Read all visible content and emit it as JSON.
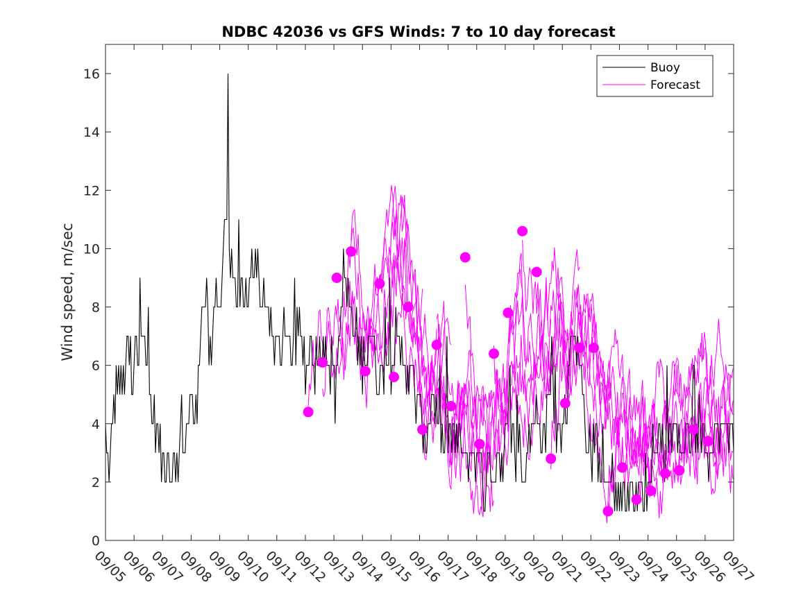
{
  "chart_data": {
    "type": "line",
    "title": "NDBC 42036 vs GFS Winds: 7 to 10 day forecast",
    "xlabel": "",
    "ylabel": "Wind speed, m/sec",
    "xlim": [
      0,
      22
    ],
    "ylim": [
      0,
      17
    ],
    "yticks": [
      0,
      2,
      4,
      6,
      8,
      10,
      12,
      14,
      16
    ],
    "ytick_labels": [
      "0",
      "2",
      "4",
      "6",
      "8",
      "10",
      "12",
      "14",
      "16"
    ],
    "xtick_labels": [
      "09/05",
      "09/06",
      "09/07",
      "09/08",
      "09/09",
      "09/10",
      "09/11",
      "09/12",
      "09/13",
      "09/14",
      "09/15",
      "09/16",
      "09/17",
      "09/18",
      "09/19",
      "09/20",
      "09/21",
      "09/22",
      "09/23",
      "09/24",
      "09/25",
      "09/26",
      "09/27"
    ],
    "legend": {
      "location": "top-right",
      "entries": [
        {
          "label": "Buoy",
          "color": "#000000"
        },
        {
          "label": "Forecast",
          "color": "#ff00ff"
        }
      ]
    },
    "colors": {
      "buoy": "#000000",
      "forecast": "#ff00ff",
      "axes": "#262626"
    },
    "buoy_anchors": [
      [
        0,
        3.3
      ],
      [
        0.05,
        3
      ],
      [
        0.15,
        2
      ],
      [
        0.25,
        4
      ],
      [
        0.35,
        5
      ],
      [
        0.45,
        6
      ],
      [
        0.55,
        5
      ],
      [
        0.65,
        6
      ],
      [
        0.75,
        6
      ],
      [
        0.85,
        6.5
      ],
      [
        0.95,
        4.5
      ],
      [
        1.05,
        6.5
      ],
      [
        1.15,
        6
      ],
      [
        1.3,
        8
      ],
      [
        1.45,
        6
      ],
      [
        1.55,
        5
      ],
      [
        1.7,
        4
      ],
      [
        1.85,
        3
      ],
      [
        2.0,
        2.5
      ],
      [
        2.15,
        3
      ],
      [
        2.3,
        2.5
      ],
      [
        2.45,
        2
      ],
      [
        2.55,
        1.5
      ],
      [
        2.65,
        5
      ],
      [
        2.75,
        3
      ],
      [
        2.85,
        4
      ],
      [
        3.0,
        5
      ],
      [
        3.15,
        4
      ],
      [
        3.3,
        7
      ],
      [
        3.4,
        8
      ],
      [
        3.55,
        8.5
      ],
      [
        3.7,
        5
      ],
      [
        3.8,
        8
      ],
      [
        3.95,
        9
      ],
      [
        4.05,
        8
      ],
      [
        4.15,
        10.5
      ],
      [
        4.25,
        12
      ],
      [
        4.4,
        9
      ],
      [
        4.55,
        8
      ],
      [
        4.7,
        8.5
      ],
      [
        4.85,
        9
      ],
      [
        5.0,
        8
      ],
      [
        5.15,
        9.5
      ],
      [
        5.3,
        10
      ],
      [
        5.45,
        8.5
      ],
      [
        5.6,
        8
      ],
      [
        5.75,
        7.5
      ],
      [
        5.9,
        6.5
      ],
      [
        6.05,
        7
      ],
      [
        6.2,
        6.5
      ],
      [
        6.4,
        7
      ],
      [
        6.6,
        6.5
      ],
      [
        6.8,
        7
      ],
      [
        7.0,
        6
      ],
      [
        7.2,
        6.5
      ],
      [
        7.35,
        6
      ],
      [
        7.5,
        6.5
      ],
      [
        7.7,
        7
      ],
      [
        7.9,
        6
      ],
      [
        8.05,
        5
      ],
      [
        8.2,
        7.5
      ],
      [
        8.35,
        8
      ],
      [
        8.5,
        8.5
      ],
      [
        8.65,
        7.5
      ],
      [
        8.8,
        7
      ],
      [
        8.95,
        6
      ],
      [
        9.1,
        6.5
      ],
      [
        9.25,
        7.5
      ],
      [
        9.4,
        6.5
      ],
      [
        9.55,
        5.5
      ],
      [
        9.7,
        6
      ],
      [
        9.85,
        6.5
      ],
      [
        10.0,
        6
      ],
      [
        10.15,
        7
      ],
      [
        10.3,
        6
      ],
      [
        10.45,
        6.5
      ],
      [
        10.6,
        6
      ],
      [
        10.75,
        5.5
      ],
      [
        10.9,
        5
      ],
      [
        11.05,
        4
      ],
      [
        11.2,
        3.5
      ],
      [
        11.35,
        4
      ],
      [
        11.5,
        5
      ],
      [
        11.65,
        4
      ],
      [
        11.8,
        3
      ],
      [
        11.95,
        3.5
      ],
      [
        12.1,
        4
      ],
      [
        12.25,
        3
      ],
      [
        12.4,
        4
      ],
      [
        12.55,
        2.5
      ],
      [
        12.7,
        3
      ],
      [
        12.85,
        3.5
      ],
      [
        13.0,
        2.5
      ],
      [
        13.15,
        3
      ],
      [
        13.3,
        1.5
      ],
      [
        13.45,
        3
      ],
      [
        13.6,
        2
      ],
      [
        13.75,
        3
      ],
      [
        13.9,
        2.5
      ],
      [
        14.05,
        3.5
      ],
      [
        14.2,
        4
      ],
      [
        14.35,
        2.5
      ],
      [
        14.5,
        3.5
      ],
      [
        14.65,
        2
      ],
      [
        14.8,
        3
      ],
      [
        14.95,
        5
      ],
      [
        15.1,
        4.5
      ],
      [
        15.25,
        3.5
      ],
      [
        15.4,
        4
      ],
      [
        15.55,
        5
      ],
      [
        15.7,
        4.5
      ],
      [
        15.85,
        4
      ],
      [
        16.0,
        3.5
      ],
      [
        16.15,
        5
      ],
      [
        16.3,
        6.5
      ],
      [
        16.45,
        7.5
      ],
      [
        16.6,
        6
      ],
      [
        16.75,
        4.5
      ],
      [
        16.9,
        3.5
      ],
      [
        17.05,
        3
      ],
      [
        17.2,
        3.5
      ],
      [
        17.35,
        2.5
      ],
      [
        17.5,
        2
      ],
      [
        17.65,
        3
      ],
      [
        17.8,
        2
      ],
      [
        17.95,
        2
      ],
      [
        18.1,
        1.5
      ],
      [
        18.25,
        1
      ],
      [
        18.4,
        1.5
      ],
      [
        18.55,
        1
      ],
      [
        18.7,
        1.5
      ],
      [
        18.85,
        2
      ],
      [
        19.0,
        1.5
      ],
      [
        19.15,
        2.5
      ],
      [
        19.3,
        3
      ],
      [
        19.45,
        3.5
      ],
      [
        19.6,
        3
      ],
      [
        19.75,
        3.5
      ],
      [
        19.9,
        4
      ],
      [
        20.05,
        3.5
      ],
      [
        20.2,
        3
      ],
      [
        20.35,
        3.5
      ],
      [
        20.5,
        4
      ],
      [
        20.65,
        3
      ],
      [
        20.8,
        4
      ],
      [
        20.95,
        3.5
      ],
      [
        21.1,
        3
      ],
      [
        21.25,
        4
      ],
      [
        21.4,
        3.5
      ],
      [
        21.6,
        4
      ],
      [
        21.8,
        3.5
      ],
      [
        22.0,
        4
      ]
    ],
    "forecast_points": [
      [
        7.1,
        4.4
      ],
      [
        7.6,
        6.1
      ],
      [
        8.1,
        9.0
      ],
      [
        8.6,
        9.9
      ],
      [
        9.1,
        5.8
      ],
      [
        9.6,
        8.8
      ],
      [
        10.1,
        5.6
      ],
      [
        10.6,
        8.0
      ],
      [
        11.1,
        3.8
      ],
      [
        11.6,
        6.7
      ],
      [
        12.1,
        4.6
      ],
      [
        12.6,
        9.7
      ],
      [
        13.1,
        3.3
      ],
      [
        13.6,
        6.4
      ],
      [
        14.1,
        7.8
      ],
      [
        14.6,
        10.6
      ],
      [
        15.1,
        9.2
      ],
      [
        15.6,
        2.8
      ],
      [
        16.1,
        4.7
      ],
      [
        16.6,
        6.6
      ],
      [
        17.1,
        6.6
      ],
      [
        17.6,
        1.0
      ],
      [
        18.1,
        2.5
      ],
      [
        18.6,
        1.4
      ],
      [
        19.1,
        1.7
      ],
      [
        19.6,
        2.3
      ],
      [
        20.1,
        2.4
      ],
      [
        20.6,
        3.8
      ],
      [
        21.1,
        3.4
      ]
    ],
    "forecast_series_count": 29
  }
}
